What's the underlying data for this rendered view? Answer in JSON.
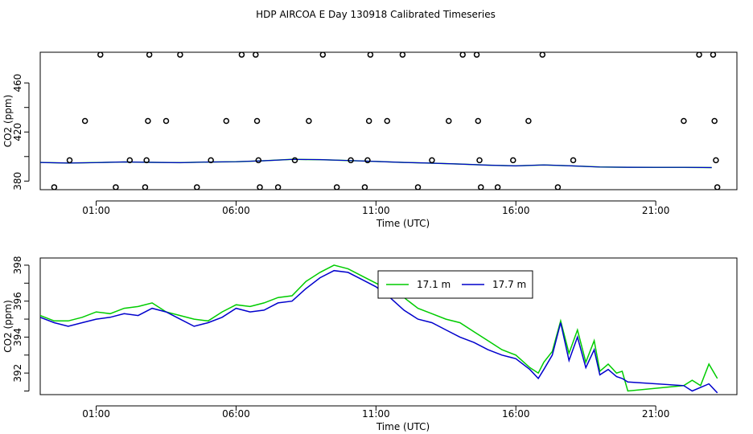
{
  "title": "HDP AIRCOA E  Day 130918  Calibrated Timeseries",
  "colors": {
    "series_17_1": "#00cc00",
    "series_17_7": "#0000cc",
    "markers": "#000000"
  },
  "chart_data": [
    {
      "type": "scatter",
      "title": "",
      "xlabel": "Time (UTC)",
      "ylabel": "CO2 (ppm)",
      "xlim_hours": [
        -1.0,
        23.9
      ],
      "ylim": [
        373,
        485
      ],
      "xticks": [
        {
          "label": "01:00",
          "hour": 1
        },
        {
          "label": "06:00",
          "hour": 6
        },
        {
          "label": "11:00",
          "hour": 11
        },
        {
          "label": "16:00",
          "hour": 16
        },
        {
          "label": "21:00",
          "hour": 21
        }
      ],
      "yticks": [
        380,
        420,
        460
      ],
      "yticks_minor": [
        400,
        440
      ],
      "marker_points": [
        {
          "x": -0.5,
          "y": 375
        },
        {
          "x": 0.05,
          "y": 397
        },
        {
          "x": 0.6,
          "y": 429
        },
        {
          "x": 1.15,
          "y": 483
        },
        {
          "x": 1.7,
          "y": 375
        },
        {
          "x": 2.2,
          "y": 397
        },
        {
          "x": 2.75,
          "y": 375
        },
        {
          "x": 2.8,
          "y": 397
        },
        {
          "x": 2.85,
          "y": 429
        },
        {
          "x": 2.9,
          "y": 483
        },
        {
          "x": 3.5,
          "y": 429
        },
        {
          "x": 4.0,
          "y": 483
        },
        {
          "x": 4.6,
          "y": 375
        },
        {
          "x": 5.1,
          "y": 397
        },
        {
          "x": 5.65,
          "y": 429
        },
        {
          "x": 6.2,
          "y": 483
        },
        {
          "x": 6.7,
          "y": 483
        },
        {
          "x": 6.75,
          "y": 429
        },
        {
          "x": 6.8,
          "y": 397
        },
        {
          "x": 6.85,
          "y": 375
        },
        {
          "x": 7.5,
          "y": 375
        },
        {
          "x": 8.1,
          "y": 397
        },
        {
          "x": 8.6,
          "y": 429
        },
        {
          "x": 9.1,
          "y": 483
        },
        {
          "x": 9.6,
          "y": 375
        },
        {
          "x": 10.1,
          "y": 397
        },
        {
          "x": 10.6,
          "y": 375
        },
        {
          "x": 10.7,
          "y": 397
        },
        {
          "x": 10.75,
          "y": 429
        },
        {
          "x": 10.8,
          "y": 483
        },
        {
          "x": 11.4,
          "y": 429
        },
        {
          "x": 11.95,
          "y": 483
        },
        {
          "x": 12.5,
          "y": 375
        },
        {
          "x": 13.0,
          "y": 397
        },
        {
          "x": 13.6,
          "y": 429
        },
        {
          "x": 14.1,
          "y": 483
        },
        {
          "x": 14.6,
          "y": 483
        },
        {
          "x": 14.65,
          "y": 429
        },
        {
          "x": 14.7,
          "y": 397
        },
        {
          "x": 14.75,
          "y": 375
        },
        {
          "x": 15.35,
          "y": 375
        },
        {
          "x": 15.9,
          "y": 397
        },
        {
          "x": 16.45,
          "y": 429
        },
        {
          "x": 16.95,
          "y": 483
        },
        {
          "x": 17.5,
          "y": 375
        },
        {
          "x": 18.05,
          "y": 397
        },
        {
          "x": 22.0,
          "y": 429
        },
        {
          "x": 22.55,
          "y": 483
        },
        {
          "x": 23.05,
          "y": 483
        },
        {
          "x": 23.1,
          "y": 429
        },
        {
          "x": 23.15,
          "y": 397
        },
        {
          "x": 23.2,
          "y": 375
        }
      ],
      "line_series": [
        {
          "x": [
            -1.0,
            0.0,
            1.0,
            2.0,
            3.0,
            4.0,
            5.0,
            6.0,
            7.0,
            8.0,
            9.0,
            10.0,
            11.0,
            12.0,
            13.0,
            14.0,
            15.0,
            16.0,
            17.0,
            18.0,
            19.0,
            20.0,
            21.0,
            22.0,
            23.0
          ],
          "y": [
            395.2,
            394.7,
            395.1,
            395.6,
            395.3,
            395.0,
            395.5,
            395.8,
            396.6,
            397.7,
            397.5,
            396.8,
            396.0,
            395.2,
            394.6,
            393.9,
            393.0,
            392.4,
            393.2,
            392.4,
            391.5,
            391.3,
            391.2,
            391.2,
            391.0
          ]
        }
      ]
    },
    {
      "type": "line",
      "title": "",
      "xlabel": "Time (UTC)",
      "ylabel": "CO2 (ppm)",
      "xlim_hours": [
        -1.0,
        23.9
      ],
      "ylim": [
        390.8,
        398.4
      ],
      "xticks": [
        {
          "label": "01:00",
          "hour": 1
        },
        {
          "label": "06:00",
          "hour": 6
        },
        {
          "label": "11:00",
          "hour": 11
        },
        {
          "label": "16:00",
          "hour": 16
        },
        {
          "label": "21:00",
          "hour": 21
        }
      ],
      "yticks": [
        392,
        394,
        396,
        398
      ],
      "yticks_minor": [
        391,
        393,
        395,
        397
      ],
      "legend": {
        "placement": "top-center",
        "entries": [
          "17.1 m",
          "17.7 m"
        ]
      },
      "series": [
        {
          "name": "17.1 m",
          "x": [
            -1.0,
            -0.5,
            0.0,
            0.5,
            1.0,
            1.5,
            2.0,
            2.5,
            3.0,
            3.5,
            4.0,
            4.5,
            5.0,
            5.5,
            6.0,
            6.5,
            7.0,
            7.5,
            8.0,
            8.5,
            9.0,
            9.5,
            10.0,
            10.5,
            11.0,
            11.5,
            12.0,
            12.5,
            13.0,
            13.5,
            14.0,
            14.5,
            15.0,
            15.5,
            16.0,
            16.5,
            16.8,
            17.0,
            17.3,
            17.6,
            17.9,
            18.2,
            18.5,
            18.8,
            19.0,
            19.3,
            19.6,
            19.8,
            20.0,
            22.0,
            22.3,
            22.6,
            22.9,
            23.2
          ],
          "y": [
            395.2,
            394.9,
            394.9,
            395.1,
            395.4,
            395.3,
            395.6,
            395.7,
            395.9,
            395.4,
            395.2,
            395.0,
            394.9,
            395.4,
            395.8,
            395.7,
            395.9,
            396.2,
            396.3,
            397.1,
            397.6,
            398.0,
            397.8,
            397.4,
            397.0,
            396.6,
            396.2,
            395.6,
            395.3,
            395.0,
            394.8,
            394.3,
            393.8,
            393.3,
            393.0,
            392.3,
            392.0,
            392.6,
            393.2,
            394.9,
            393.1,
            394.4,
            392.6,
            393.8,
            392.1,
            392.5,
            392.0,
            392.1,
            391.0,
            391.3,
            391.6,
            391.3,
            392.5,
            391.7
          ]
        },
        {
          "name": "17.7 m",
          "x": [
            -1.0,
            -0.5,
            0.0,
            0.5,
            1.0,
            1.5,
            2.0,
            2.5,
            3.0,
            3.5,
            4.0,
            4.5,
            5.0,
            5.5,
            6.0,
            6.5,
            7.0,
            7.5,
            8.0,
            8.5,
            9.0,
            9.5,
            10.0,
            10.5,
            11.0,
            11.5,
            12.0,
            12.5,
            13.0,
            13.5,
            14.0,
            14.5,
            15.0,
            15.5,
            16.0,
            16.5,
            16.8,
            17.0,
            17.3,
            17.6,
            17.9,
            18.2,
            18.5,
            18.8,
            19.0,
            19.3,
            19.6,
            19.8,
            20.0,
            22.0,
            22.3,
            22.6,
            22.9,
            23.2
          ],
          "y": [
            395.1,
            394.8,
            394.6,
            394.8,
            395.0,
            395.1,
            395.3,
            395.2,
            395.6,
            395.4,
            395.0,
            394.6,
            394.8,
            395.1,
            395.6,
            395.4,
            395.5,
            395.9,
            396.0,
            396.7,
            397.3,
            397.7,
            397.6,
            397.2,
            396.8,
            396.2,
            395.5,
            395.0,
            394.8,
            394.4,
            394.0,
            393.7,
            393.3,
            393.0,
            392.8,
            392.2,
            391.7,
            392.2,
            393.0,
            394.8,
            392.7,
            394.0,
            392.3,
            393.3,
            391.9,
            392.2,
            391.8,
            391.7,
            391.5,
            391.3,
            391.0,
            391.2,
            391.4,
            390.9
          ]
        }
      ]
    }
  ]
}
